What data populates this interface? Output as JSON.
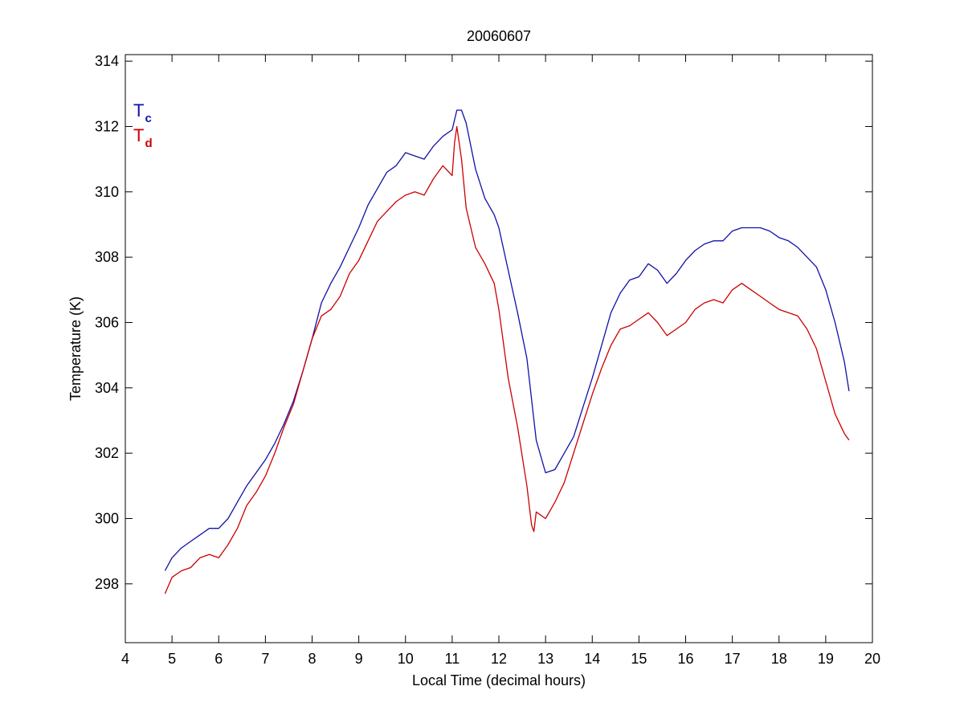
{
  "chart_data": {
    "type": "line",
    "title": "20060607",
    "xlabel": "Local Time (decimal hours)",
    "ylabel": "Temperature (K)",
    "xlim": [
      4,
      20
    ],
    "ylim": [
      296.2,
      314.2
    ],
    "xticks": [
      4,
      5,
      6,
      7,
      8,
      9,
      10,
      11,
      12,
      13,
      14,
      15,
      16,
      17,
      18,
      19,
      20
    ],
    "yticks": [
      298,
      300,
      302,
      304,
      306,
      308,
      310,
      312,
      314
    ],
    "grid": false,
    "legend_position": "top-left",
    "series": [
      {
        "name": "T",
        "subscript": "c",
        "color": "#1010a8",
        "x": [
          4.85,
          5.0,
          5.2,
          5.4,
          5.6,
          5.8,
          6.0,
          6.2,
          6.4,
          6.6,
          6.8,
          7.0,
          7.2,
          7.4,
          7.6,
          7.8,
          8.0,
          8.2,
          8.4,
          8.6,
          8.8,
          9.0,
          9.2,
          9.4,
          9.6,
          9.8,
          10.0,
          10.2,
          10.4,
          10.6,
          10.8,
          11.0,
          11.1,
          11.2,
          11.3,
          11.5,
          11.7,
          11.9,
          12.0,
          12.2,
          12.4,
          12.6,
          12.8,
          13.0,
          13.2,
          13.4,
          13.6,
          13.8,
          14.0,
          14.2,
          14.4,
          14.6,
          14.8,
          15.0,
          15.2,
          15.4,
          15.6,
          15.8,
          16.0,
          16.2,
          16.4,
          16.6,
          16.8,
          17.0,
          17.2,
          17.4,
          17.6,
          17.8,
          18.0,
          18.2,
          18.4,
          18.6,
          18.8,
          19.0,
          19.2,
          19.4,
          19.5
        ],
        "y": [
          298.4,
          298.8,
          299.1,
          299.3,
          299.5,
          299.7,
          299.7,
          300.0,
          300.5,
          301.0,
          301.4,
          301.8,
          302.3,
          302.9,
          303.6,
          304.5,
          305.5,
          306.6,
          307.2,
          307.7,
          308.3,
          308.9,
          309.6,
          310.1,
          310.6,
          310.8,
          311.2,
          311.1,
          311.0,
          311.4,
          311.7,
          311.9,
          312.5,
          312.5,
          312.1,
          310.7,
          309.8,
          309.3,
          308.9,
          307.6,
          306.3,
          304.9,
          302.4,
          301.4,
          301.5,
          302.0,
          302.5,
          303.4,
          304.3,
          305.3,
          306.3,
          306.9,
          307.3,
          307.4,
          307.8,
          307.6,
          307.2,
          307.5,
          307.9,
          308.2,
          308.4,
          308.5,
          308.5,
          308.8,
          308.9,
          308.9,
          308.9,
          308.8,
          308.6,
          308.5,
          308.3,
          308.0,
          307.7,
          307.0,
          306.0,
          304.8,
          303.9
        ]
      },
      {
        "name": "T",
        "subscript": "d",
        "color": "#cc0000",
        "x": [
          4.85,
          5.0,
          5.2,
          5.4,
          5.6,
          5.8,
          6.0,
          6.2,
          6.4,
          6.6,
          6.8,
          7.0,
          7.2,
          7.4,
          7.6,
          7.8,
          8.0,
          8.2,
          8.4,
          8.6,
          8.8,
          9.0,
          9.2,
          9.4,
          9.6,
          9.8,
          10.0,
          10.2,
          10.4,
          10.6,
          10.8,
          11.0,
          11.05,
          11.1,
          11.2,
          11.3,
          11.5,
          11.7,
          11.9,
          12.0,
          12.2,
          12.4,
          12.6,
          12.7,
          12.75,
          12.8,
          13.0,
          13.2,
          13.4,
          13.6,
          13.8,
          14.0,
          14.2,
          14.4,
          14.6,
          14.8,
          15.0,
          15.2,
          15.4,
          15.6,
          15.8,
          16.0,
          16.2,
          16.4,
          16.6,
          16.8,
          17.0,
          17.2,
          17.4,
          17.6,
          17.8,
          18.0,
          18.2,
          18.4,
          18.6,
          18.8,
          19.0,
          19.2,
          19.4,
          19.5
        ],
        "y": [
          297.7,
          298.2,
          298.4,
          298.5,
          298.8,
          298.9,
          298.8,
          299.2,
          299.7,
          300.4,
          300.8,
          301.3,
          302.0,
          302.8,
          303.5,
          304.5,
          305.5,
          306.2,
          306.4,
          306.8,
          307.5,
          307.9,
          308.5,
          309.1,
          309.4,
          309.7,
          309.9,
          310.0,
          309.9,
          310.4,
          310.8,
          310.5,
          311.5,
          312.0,
          311.0,
          309.5,
          308.3,
          307.8,
          307.2,
          306.4,
          304.3,
          302.8,
          301.0,
          299.8,
          299.6,
          300.2,
          300.0,
          300.5,
          301.1,
          302.0,
          302.9,
          303.8,
          304.6,
          305.3,
          305.8,
          305.9,
          306.1,
          306.3,
          306.0,
          305.6,
          305.8,
          306.0,
          306.4,
          306.6,
          306.7,
          306.6,
          307.0,
          307.2,
          307.0,
          306.8,
          306.6,
          306.4,
          306.3,
          306.2,
          305.8,
          305.2,
          304.2,
          303.2,
          302.6,
          302.4
        ]
      }
    ]
  }
}
